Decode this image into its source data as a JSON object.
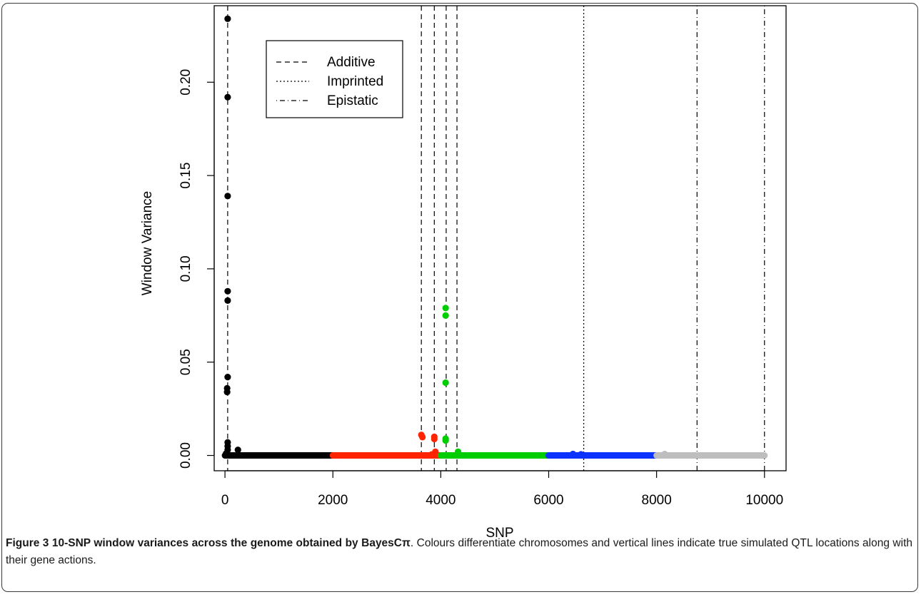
{
  "chart_data": {
    "type": "scatter",
    "title": "",
    "xlabel": "SNP",
    "ylabel": "Window Variance",
    "xlim": [
      -200,
      10400
    ],
    "ylim": [
      -0.0082,
      0.241
    ],
    "x_ticks": [
      0,
      2000,
      4000,
      6000,
      8000,
      10000
    ],
    "x_tick_labels": [
      "0",
      "2000",
      "4000",
      "6000",
      "8000",
      "10000"
    ],
    "y_ticks": [
      0.0,
      0.05,
      0.1,
      0.15,
      0.2
    ],
    "y_tick_labels": [
      "0.00",
      "0.05",
      "0.10",
      "0.15",
      "0.20"
    ],
    "grid": false,
    "legend_position": "top-left",
    "legend": [
      {
        "label": "Additive",
        "line_style": "dashed"
      },
      {
        "label": "Imprinted",
        "line_style": "dotted"
      },
      {
        "label": "Epistatic",
        "line_style": "dashdot"
      }
    ],
    "qtl_lines": [
      {
        "x": 50,
        "action": "Additive"
      },
      {
        "x": 3640,
        "action": "Additive"
      },
      {
        "x": 3880,
        "action": "Additive"
      },
      {
        "x": 4100,
        "action": "Additive"
      },
      {
        "x": 4300,
        "action": "Additive"
      },
      {
        "x": 6650,
        "action": "Imprinted"
      },
      {
        "x": 8750,
        "action": "Epistatic"
      },
      {
        "x": 10000,
        "action": "Epistatic"
      }
    ],
    "baseline_segments": [
      {
        "from": 0,
        "to": 2000,
        "color": "#000000"
      },
      {
        "from": 2000,
        "to": 4000,
        "color": "#ff2400"
      },
      {
        "from": 4000,
        "to": 6000,
        "color": "#00cd00"
      },
      {
        "from": 6000,
        "to": 8000,
        "color": "#0c32ff"
      },
      {
        "from": 8000,
        "to": 10000,
        "color": "#bebebe"
      }
    ],
    "series": [
      {
        "color": "#000000",
        "points": [
          [
            50,
            0.234
          ],
          [
            50,
            0.192
          ],
          [
            50,
            0.139
          ],
          [
            50,
            0.088
          ],
          [
            50,
            0.083
          ],
          [
            50,
            0.042
          ],
          [
            40,
            0.036
          ],
          [
            40,
            0.034
          ],
          [
            50,
            0.007
          ],
          [
            50,
            0.005
          ],
          [
            50,
            0.003
          ],
          [
            20,
            0.001
          ],
          [
            240,
            0.003
          ]
        ]
      },
      {
        "color": "#ff2400",
        "points": [
          [
            3640,
            0.011
          ],
          [
            3660,
            0.0098
          ],
          [
            3880,
            0.01
          ],
          [
            3880,
            0.0088
          ],
          [
            3900,
            0.002
          ],
          [
            3830,
            0.0005
          ]
        ]
      },
      {
        "color": "#00cd00",
        "points": [
          [
            4090,
            0.079
          ],
          [
            4090,
            0.075
          ],
          [
            4090,
            0.039
          ],
          [
            4090,
            0.009
          ],
          [
            4090,
            0.008
          ],
          [
            4320,
            0.002
          ]
        ]
      },
      {
        "color": "#0c32ff",
        "points": [
          [
            6450,
            0.0008
          ],
          [
            6600,
            0.0006
          ]
        ]
      },
      {
        "color": "#bebebe",
        "points": [
          [
            8150,
            0.0008
          ]
        ]
      }
    ]
  },
  "caption": {
    "label": "Figure 3 10-SNP window variances across the genome obtained by BayesCπ",
    "text": ". Colours differentiate chromosomes and vertical lines indicate true simulated QTL locations along with their gene actions."
  }
}
